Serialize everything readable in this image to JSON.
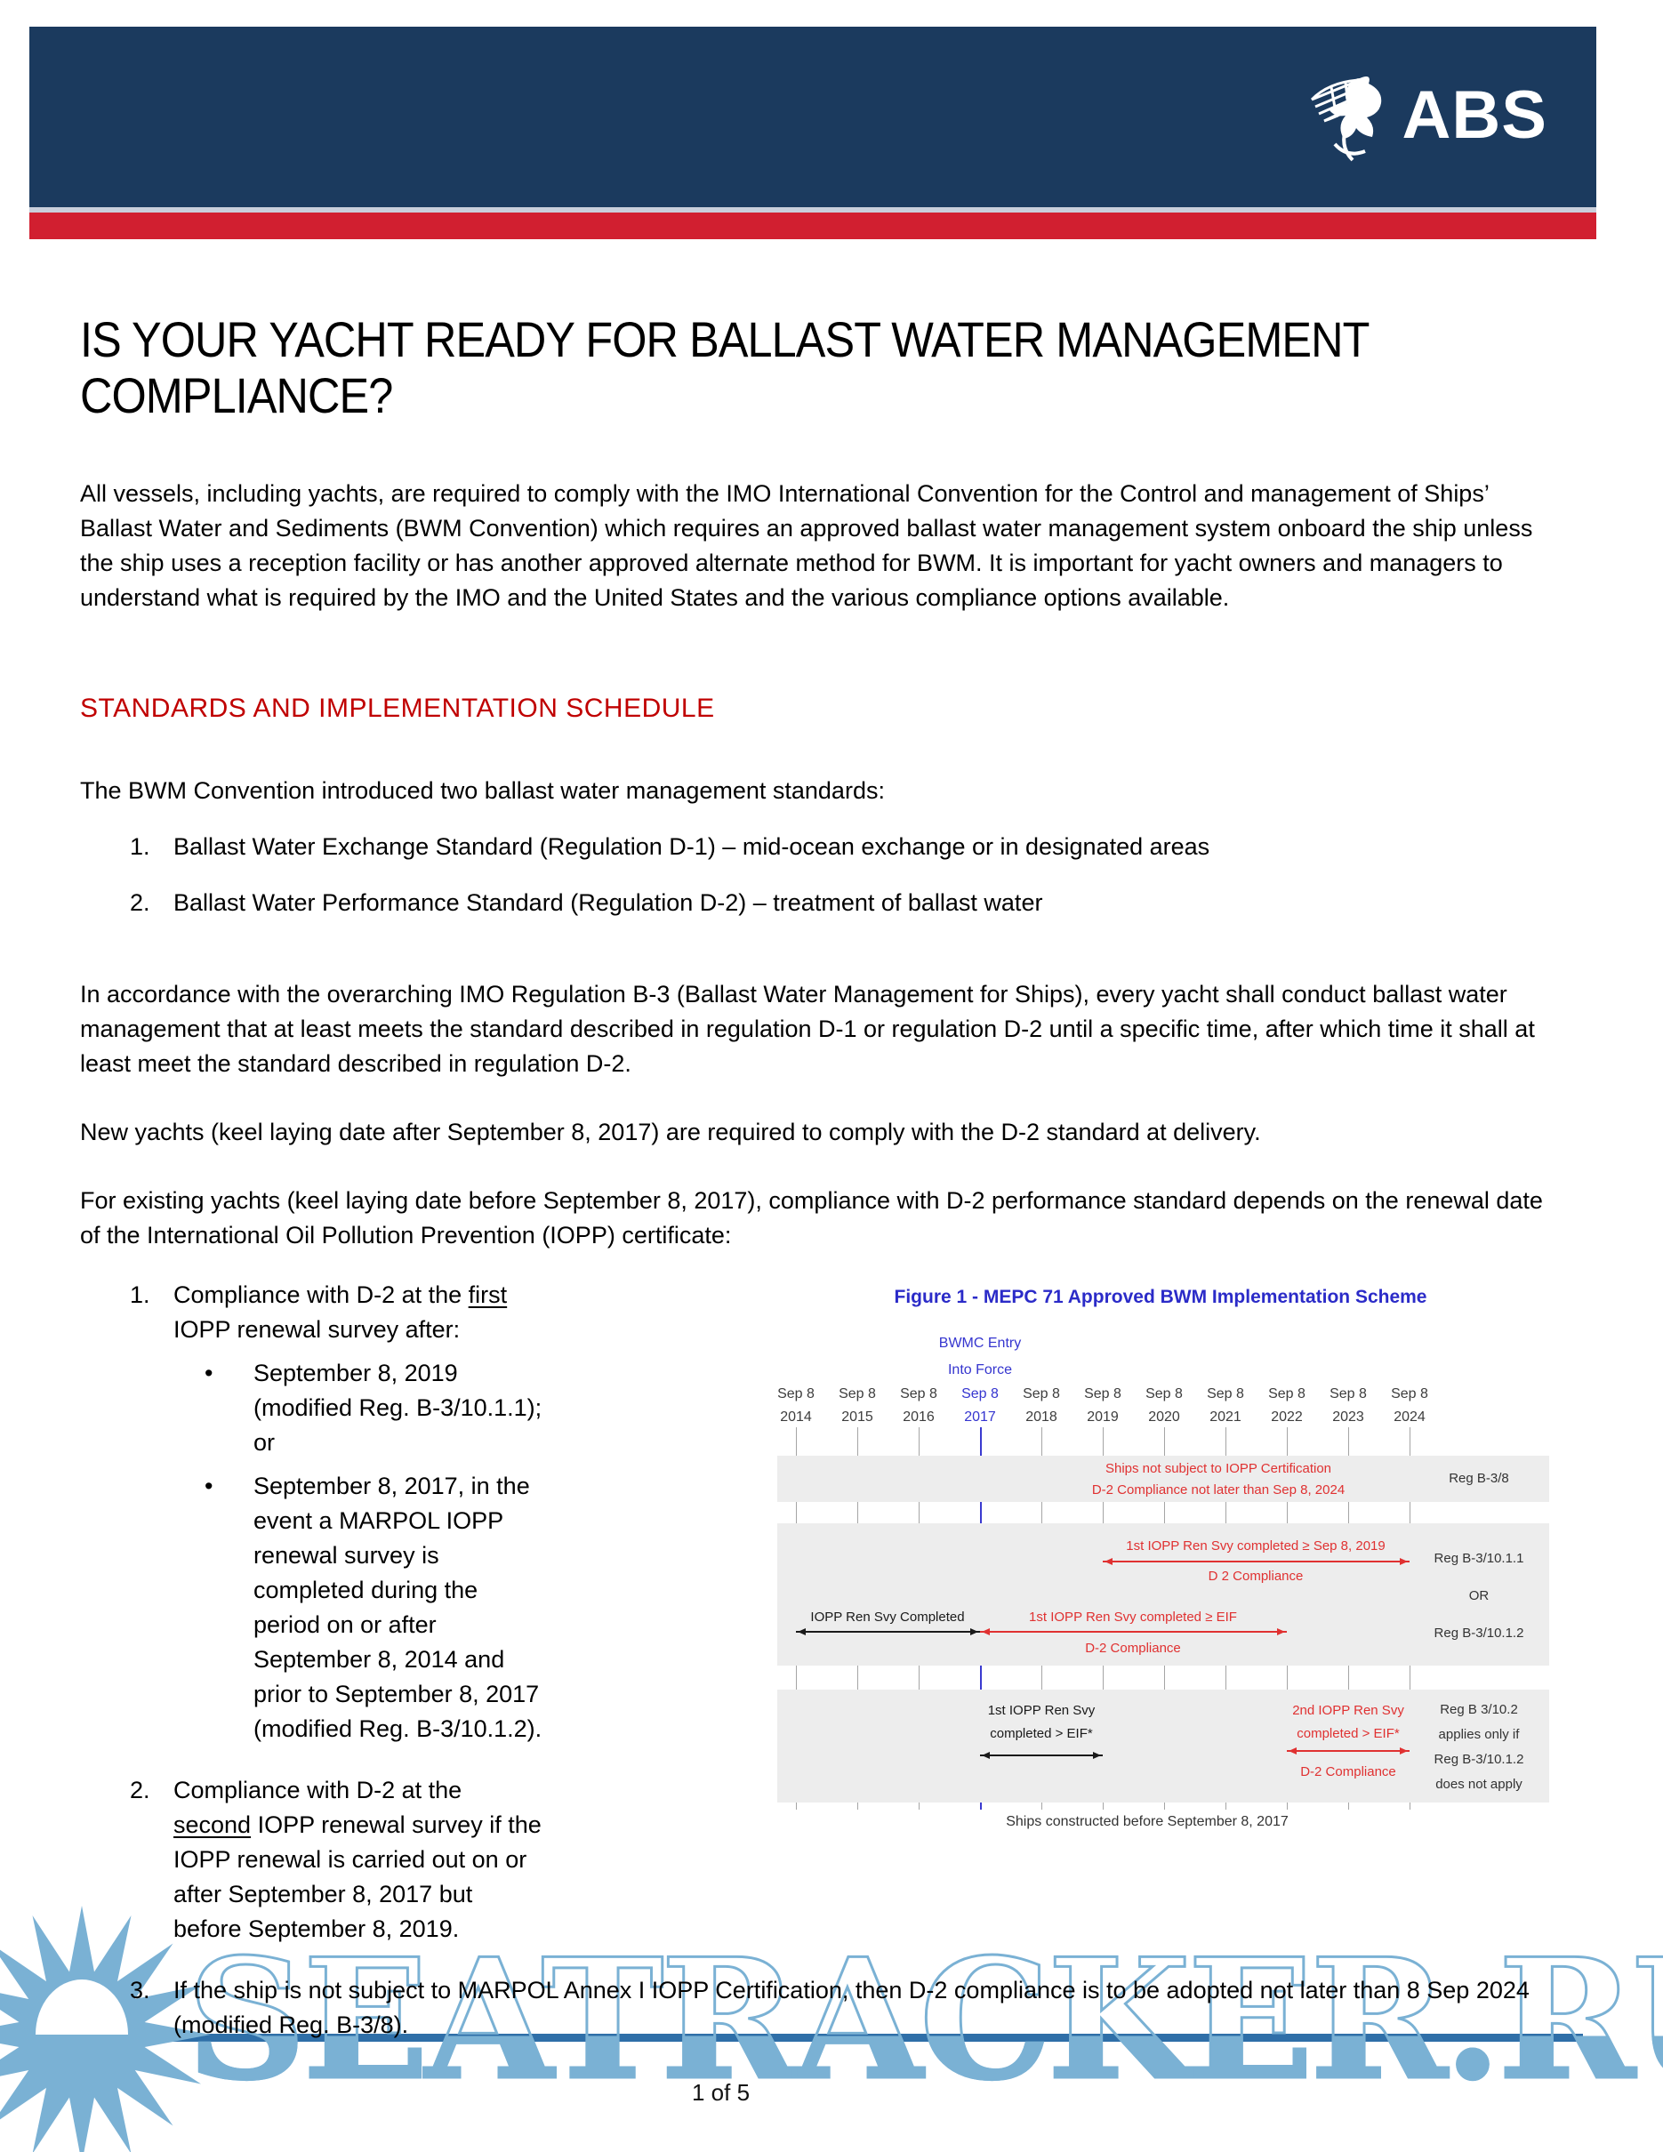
{
  "header": {
    "logo_text": "ABS",
    "bar_color": "#1b3a5e",
    "stripe_color": "#d11f30"
  },
  "title": {
    "line1": "IS YOUR YACHT READY FOR BALLAST WATER MANAGEMENT",
    "line2": "COMPLIANCE?"
  },
  "intro": "All vessels, including yachts, are required to comply with the IMO International Convention for the Control and management of Ships’ Ballast Water and Sediments  (BWM Convention) which requires an approved ballast water management system onboard the ship unless the ship uses a reception facility or has another approved alternate method for BWM. It is important for yacht owners and managers to understand what is required by the IMO and the United States and the various compliance options available.",
  "section_heading": "STANDARDS AND IMPLEMENTATION SCHEDULE",
  "standards_intro": "The BWM Convention introduced two ballast water management standards:",
  "standards": [
    {
      "num": "1.",
      "text": "Ballast Water Exchange Standard (Regulation D-1) – mid-ocean exchange or in designated areas"
    },
    {
      "num": "2.",
      "text": "Ballast Water Performance Standard (Regulation D-2) – treatment of ballast water"
    }
  ],
  "para_b3": "In accordance with the overarching IMO Regulation B-3 (Ballast Water Management for Ships), every yacht shall conduct ballast water management that at least meets the standard described in regulation D-1 or regulation D-2 until a specific time, after which time it shall at least meet the standard described in regulation D-2.",
  "para_new_yachts": "New yachts (keel laying date after September 8, 2017) are required to comply with the D-2 standard at delivery.",
  "para_existing": "For existing yachts (keel laying date before September 8, 2017), compliance with D-2 performance standard depends on the renewal date of the International Oil Pollution Prevention (IOPP) certificate:",
  "compliance": {
    "item1": {
      "num": "1.",
      "pre": "Compliance with D-2 at the ",
      "underlined": "first",
      "post": " IOPP renewal survey after:"
    },
    "item1_bullets": [
      {
        "dot": "•",
        "text": "September 8, 2019 (modified Reg. B-3/10.1.1); or"
      },
      {
        "dot": "•",
        "text": "September 8, 2017, in the event a MARPOL IOPP renewal survey is completed during the period on or after September 8, 2014 and prior to September 8, 2017 (modified Reg. B-3/10.1.2)."
      }
    ],
    "item2": {
      "num": "2.",
      "pre": "Compliance with D-2 at the ",
      "underlined": "second",
      "post": " IOPP renewal survey if the IOPP renewal is carried out on or after September 8, 2017 but before September 8, 2019."
    },
    "item3": {
      "num": "3.",
      "text": "If the ship is not subject to MARPOL Annex I IOPP Certification, then D-2 compliance is to be adopted not later than 8 Sep 2024 (modified Reg. B-3/8)."
    }
  },
  "figure": {
    "title": "Figure 1 - MEPC 71 Approved BWM Implementation Scheme",
    "eif_line1": "BWMC Entry",
    "eif_line2": "Into Force",
    "tick_top": "Sep 8",
    "years": [
      "2014",
      "2015",
      "2016",
      "2017",
      "2018",
      "2019",
      "2020",
      "2021",
      "2022",
      "2023",
      "2024"
    ],
    "highlight_year": "2017",
    "band1": {
      "line1": "Ships not subject to IOPP Certification",
      "line2": "D-2 Compliance not later than Sep 8, 2024",
      "right_label": "Reg B-3/8"
    },
    "band2": {
      "arrow1_label": "1st IOPP Ren Svy completed ≥ Sep 8, 2019",
      "arrow1_sub": "D 2 Compliance",
      "right_label1": "Reg B-3/10.1.1",
      "or_label": "OR",
      "black_label": "IOPP Ren Svy Completed",
      "arrow2_label": "1st IOPP Ren Svy completed ≥ EIF",
      "arrow2_sub": "D-2 Compliance",
      "right_label2": "Reg B-3/10.1.2"
    },
    "band3": {
      "black_line1": "1st IOPP Ren Svy",
      "black_line2": "completed  > EIF*",
      "red_line1": "2nd IOPP Ren Svy",
      "red_line2": "completed  > EIF*",
      "red_sub": "D-2 Compliance",
      "right_lines": [
        "Reg B 3/10.2",
        "applies only if",
        "Reg B-3/10.1.2",
        "does not apply"
      ]
    },
    "arrows": [
      {
        "from": "2019",
        "to": "2024",
        "color": "red"
      },
      {
        "from": "2014",
        "to": "2017",
        "color": "black"
      },
      {
        "from": "2017",
        "to": "2022",
        "color": "red"
      },
      {
        "from": "2017",
        "to": "2019",
        "color": "black"
      },
      {
        "from": "2022",
        "to": "2024",
        "color": "red"
      }
    ],
    "caption": "Ships constructed before September 8, 2017",
    "colors": {
      "title_blue": "#2b2bc8",
      "highlight_blue": "#3535cf",
      "red": "#e03131",
      "band_gray": "#ededed"
    }
  },
  "watermark": {
    "text": "SEATRACKER.RU",
    "color": "#7ab1d4"
  },
  "footer": {
    "page": "1 of 5"
  }
}
